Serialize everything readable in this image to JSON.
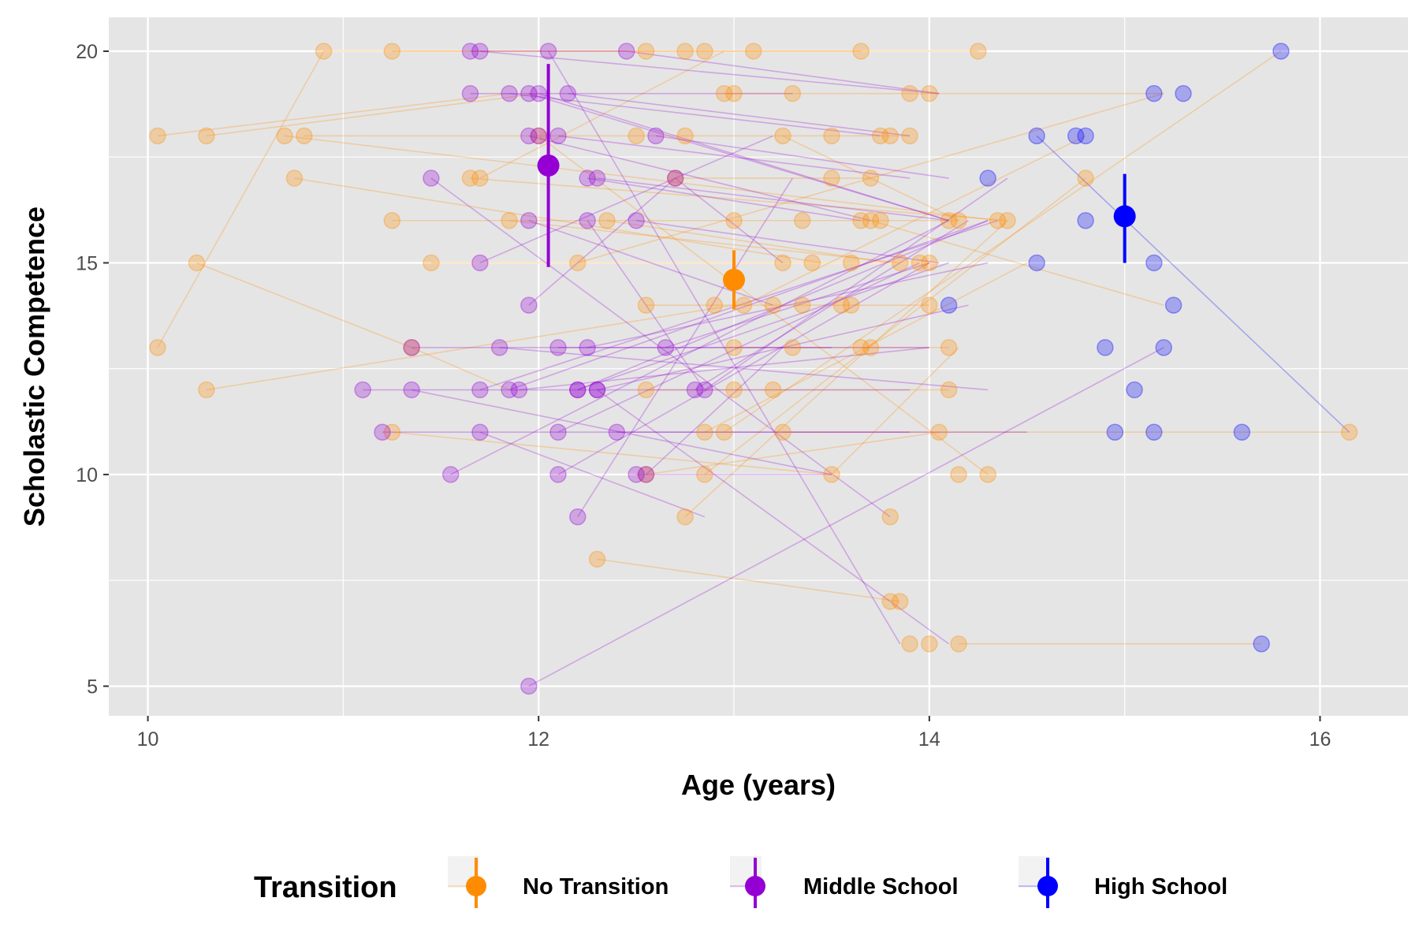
{
  "chart_data": {
    "type": "scatter",
    "xlabel": "Age (years)",
    "ylabel": "Scholastic Competence",
    "xlim": [
      9.8,
      16.45
    ],
    "ylim": [
      4.3,
      20.8
    ],
    "x_ticks": [
      10,
      12,
      14,
      16
    ],
    "y_ticks": [
      5,
      10,
      15,
      20
    ],
    "grid": true,
    "legend": {
      "title": "Transition",
      "position": "bottom",
      "entries": [
        {
          "label": "No Transition",
          "color": "#FF8C00"
        },
        {
          "label": "Middle School",
          "color": "#9400D3"
        },
        {
          "label": "High School",
          "color": "#0000FF"
        }
      ]
    },
    "series": [
      {
        "name": "No Transition",
        "color": "#FF8C00",
        "points": [
          [
            10.05,
            18
          ],
          [
            10.3,
            18
          ],
          [
            10.7,
            18
          ],
          [
            10.8,
            18
          ],
          [
            10.9,
            20
          ],
          [
            10.75,
            17
          ],
          [
            10.25,
            15
          ],
          [
            10.05,
            13
          ],
          [
            10.3,
            12
          ],
          [
            11.25,
            20
          ],
          [
            11.25,
            16
          ],
          [
            11.45,
            15
          ],
          [
            11.35,
            13
          ],
          [
            11.25,
            11
          ],
          [
            11.65,
            17
          ],
          [
            11.7,
            17
          ],
          [
            11.85,
            16
          ],
          [
            12.0,
            18
          ],
          [
            12.2,
            15
          ],
          [
            12.3,
            8
          ],
          [
            12.35,
            16
          ],
          [
            12.5,
            18
          ],
          [
            12.55,
            20
          ],
          [
            12.55,
            14
          ],
          [
            12.55,
            12
          ],
          [
            12.55,
            10
          ],
          [
            12.7,
            17
          ],
          [
            12.75,
            18
          ],
          [
            12.75,
            20
          ],
          [
            12.75,
            9
          ],
          [
            12.85,
            20
          ],
          [
            12.85,
            11
          ],
          [
            12.85,
            10
          ],
          [
            12.9,
            14
          ],
          [
            12.95,
            19
          ],
          [
            13.0,
            19
          ],
          [
            13.0,
            16
          ],
          [
            13.0,
            13
          ],
          [
            13.0,
            12
          ],
          [
            12.95,
            11
          ],
          [
            13.05,
            14
          ],
          [
            13.1,
            20
          ],
          [
            13.2,
            12
          ],
          [
            13.2,
            14
          ],
          [
            13.25,
            18
          ],
          [
            13.25,
            15
          ],
          [
            13.25,
            11
          ],
          [
            13.3,
            19
          ],
          [
            13.3,
            13
          ],
          [
            13.35,
            14
          ],
          [
            13.35,
            16
          ],
          [
            13.4,
            15
          ],
          [
            13.5,
            10
          ],
          [
            13.5,
            18
          ],
          [
            13.5,
            17
          ],
          [
            13.55,
            14
          ],
          [
            13.6,
            15
          ],
          [
            13.6,
            14
          ],
          [
            13.65,
            20
          ],
          [
            13.65,
            16
          ],
          [
            13.65,
            13
          ],
          [
            13.7,
            16
          ],
          [
            13.7,
            13
          ],
          [
            13.7,
            17
          ],
          [
            13.75,
            18
          ],
          [
            13.75,
            16
          ],
          [
            13.8,
            18
          ],
          [
            13.8,
            9
          ],
          [
            13.8,
            7
          ],
          [
            13.85,
            15
          ],
          [
            13.85,
            7
          ],
          [
            13.9,
            18
          ],
          [
            13.9,
            19
          ],
          [
            13.9,
            6
          ],
          [
            13.95,
            15
          ],
          [
            14.0,
            14
          ],
          [
            14.0,
            6
          ],
          [
            14.0,
            15
          ],
          [
            14.0,
            19
          ],
          [
            14.05,
            11
          ],
          [
            14.1,
            16
          ],
          [
            14.1,
            12
          ],
          [
            14.1,
            13
          ],
          [
            14.15,
            16
          ],
          [
            14.15,
            10
          ],
          [
            14.15,
            6
          ],
          [
            14.25,
            20
          ],
          [
            14.3,
            10
          ],
          [
            14.35,
            16
          ],
          [
            14.4,
            16
          ],
          [
            14.8,
            17
          ],
          [
            16.15,
            11
          ]
        ],
        "segments": [
          [
            10.05,
            13,
            10.9,
            20
          ],
          [
            10.9,
            20,
            14.25,
            20
          ],
          [
            11.25,
            20,
            13.65,
            20
          ],
          [
            10.05,
            18,
            11.85,
            19
          ],
          [
            10.3,
            18,
            12.0,
            19
          ],
          [
            10.7,
            18,
            14.35,
            16
          ],
          [
            10.8,
            18,
            13.9,
            18
          ],
          [
            10.75,
            17,
            13.45,
            15
          ],
          [
            10.25,
            15,
            11.35,
            13
          ],
          [
            10.3,
            12,
            13.0,
            14
          ],
          [
            11.25,
            16,
            14.15,
            16
          ],
          [
            11.25,
            11,
            13.5,
            10
          ],
          [
            11.35,
            13,
            11.85,
            12
          ],
          [
            11.45,
            15,
            13.95,
            15
          ],
          [
            11.65,
            17,
            14.4,
            16
          ],
          [
            11.7,
            17,
            12.95,
            20
          ],
          [
            11.85,
            16,
            13.85,
            15
          ],
          [
            12.0,
            18,
            14.3,
            10
          ],
          [
            12.2,
            15,
            15.2,
            19
          ],
          [
            12.3,
            8,
            13.85,
            7
          ],
          [
            12.35,
            16,
            13.8,
            15
          ],
          [
            12.55,
            14,
            14.0,
            14
          ],
          [
            12.55,
            12,
            14.1,
            12
          ],
          [
            12.55,
            10,
            14.05,
            11
          ],
          [
            12.7,
            17,
            13.7,
            17
          ],
          [
            12.75,
            9,
            14.4,
            16
          ],
          [
            12.85,
            10,
            14.8,
            17
          ],
          [
            12.85,
            11,
            14.5,
            15
          ],
          [
            12.95,
            11,
            15.8,
            20
          ],
          [
            12.95,
            19,
            15.2,
            19
          ],
          [
            13.0,
            13,
            14.1,
            13
          ],
          [
            13.05,
            14,
            14.8,
            18
          ],
          [
            13.25,
            18,
            14.15,
            16
          ],
          [
            13.25,
            11,
            16.15,
            11
          ],
          [
            13.5,
            10,
            14.15,
            13
          ],
          [
            13.7,
            16,
            15.2,
            14
          ],
          [
            14.15,
            6,
            15.7,
            6
          ]
        ]
      },
      {
        "name": "Middle School",
        "color": "#9400D3",
        "points": [
          [
            11.1,
            12
          ],
          [
            11.2,
            11
          ],
          [
            11.35,
            13
          ],
          [
            11.35,
            12
          ],
          [
            11.45,
            17
          ],
          [
            11.55,
            10
          ],
          [
            11.65,
            20
          ],
          [
            11.65,
            19
          ],
          [
            11.7,
            20
          ],
          [
            11.7,
            15
          ],
          [
            11.7,
            12
          ],
          [
            11.7,
            11
          ],
          [
            11.8,
            13
          ],
          [
            11.85,
            19
          ],
          [
            11.85,
            12
          ],
          [
            11.9,
            12
          ],
          [
            11.95,
            19
          ],
          [
            11.95,
            14
          ],
          [
            11.95,
            18
          ],
          [
            11.95,
            16
          ],
          [
            11.95,
            5
          ],
          [
            12.0,
            19
          ],
          [
            12.0,
            18
          ],
          [
            12.05,
            20
          ],
          [
            12.1,
            18
          ],
          [
            12.1,
            11
          ],
          [
            12.1,
            10
          ],
          [
            12.1,
            13
          ],
          [
            12.15,
            19
          ],
          [
            12.2,
            12
          ],
          [
            12.2,
            12
          ],
          [
            12.2,
            9
          ],
          [
            12.25,
            17
          ],
          [
            12.25,
            16
          ],
          [
            12.25,
            13
          ],
          [
            12.3,
            17
          ],
          [
            12.3,
            12
          ],
          [
            12.3,
            12
          ],
          [
            12.4,
            11
          ],
          [
            12.45,
            20
          ],
          [
            12.5,
            16
          ],
          [
            12.5,
            10
          ],
          [
            12.55,
            10
          ],
          [
            12.6,
            18
          ],
          [
            12.65,
            13
          ],
          [
            12.7,
            17
          ],
          [
            12.8,
            12
          ],
          [
            12.85,
            12
          ]
        ],
        "segments": [
          [
            11.65,
            20,
            12.45,
            20
          ],
          [
            11.7,
            20,
            14.05,
            19
          ],
          [
            11.65,
            19,
            13.3,
            19
          ],
          [
            11.85,
            19,
            13.75,
            18
          ],
          [
            11.95,
            19,
            14.1,
            16
          ],
          [
            12.0,
            19,
            14.1,
            16
          ],
          [
            12.15,
            19,
            13.9,
            18
          ],
          [
            11.7,
            15,
            13.2,
            18
          ],
          [
            11.1,
            12,
            13.9,
            12
          ],
          [
            11.2,
            11,
            13.9,
            11
          ],
          [
            11.35,
            13,
            14.0,
            13
          ],
          [
            11.35,
            12,
            13.5,
            10
          ],
          [
            11.45,
            17,
            13.8,
            9
          ],
          [
            11.55,
            10,
            14.1,
            16
          ],
          [
            11.7,
            12,
            14.35,
            16
          ],
          [
            11.7,
            11,
            12.85,
            9
          ],
          [
            11.8,
            13,
            14.3,
            12
          ],
          [
            11.85,
            12,
            14.3,
            16
          ],
          [
            11.9,
            12,
            14.0,
            13
          ],
          [
            11.95,
            5,
            15.2,
            13
          ],
          [
            11.95,
            14,
            12.7,
            17
          ],
          [
            11.95,
            18,
            13.7,
            16
          ],
          [
            11.95,
            16,
            13.2,
            14
          ],
          [
            12.05,
            20,
            13.85,
            6
          ],
          [
            12.1,
            18,
            13.9,
            17
          ],
          [
            12.1,
            11,
            13.95,
            15
          ],
          [
            12.1,
            10,
            14.0,
            15
          ],
          [
            12.1,
            13,
            13.5,
            13
          ],
          [
            12.2,
            12,
            14.1,
            15
          ],
          [
            12.2,
            12,
            14.3,
            16
          ],
          [
            12.2,
            9,
            13.3,
            17
          ],
          [
            12.25,
            17,
            13.65,
            16
          ],
          [
            12.25,
            16,
            12.85,
            12
          ],
          [
            12.25,
            13,
            14.3,
            15
          ],
          [
            12.3,
            17,
            14.1,
            16
          ],
          [
            12.3,
            12,
            14.1,
            6
          ],
          [
            12.3,
            12,
            14.2,
            14
          ],
          [
            12.4,
            11,
            14.5,
            11
          ],
          [
            12.45,
            20,
            14.05,
            19
          ],
          [
            12.5,
            16,
            14.05,
            15
          ],
          [
            12.5,
            10,
            13.5,
            10
          ],
          [
            12.55,
            10,
            13.25,
            13
          ],
          [
            12.6,
            18,
            14.1,
            17
          ],
          [
            12.65,
            13,
            14.0,
            15
          ],
          [
            12.7,
            17,
            13.25,
            15
          ],
          [
            12.8,
            12,
            14.2,
            16
          ],
          [
            12.85,
            12,
            14.4,
            17
          ]
        ]
      },
      {
        "name": "High School",
        "color": "#0000FF",
        "points": [
          [
            14.1,
            14
          ],
          [
            14.3,
            17
          ],
          [
            14.55,
            15
          ],
          [
            14.55,
            18
          ],
          [
            14.75,
            18
          ],
          [
            14.8,
            18
          ],
          [
            14.8,
            16
          ],
          [
            14.9,
            13
          ],
          [
            14.95,
            11
          ],
          [
            15.05,
            12
          ],
          [
            15.15,
            19
          ],
          [
            15.15,
            15
          ],
          [
            15.15,
            11
          ],
          [
            15.2,
            13
          ],
          [
            15.25,
            14
          ],
          [
            15.3,
            19
          ],
          [
            15.6,
            11
          ],
          [
            15.7,
            6
          ],
          [
            15.8,
            20
          ]
        ],
        "segments": [
          [
            14.55,
            18,
            16.15,
            11
          ]
        ]
      }
    ],
    "summary": [
      {
        "name": "No Transition",
        "x": 13.0,
        "mean": 14.6,
        "lower": 13.9,
        "upper": 15.3,
        "color": "#FF8C00"
      },
      {
        "name": "Middle School",
        "x": 12.05,
        "mean": 17.3,
        "lower": 14.9,
        "upper": 19.7,
        "color": "#9400D3"
      },
      {
        "name": "High School",
        "x": 15.0,
        "mean": 16.1,
        "lower": 15.0,
        "upper": 17.1,
        "color": "#0000FF"
      }
    ]
  }
}
